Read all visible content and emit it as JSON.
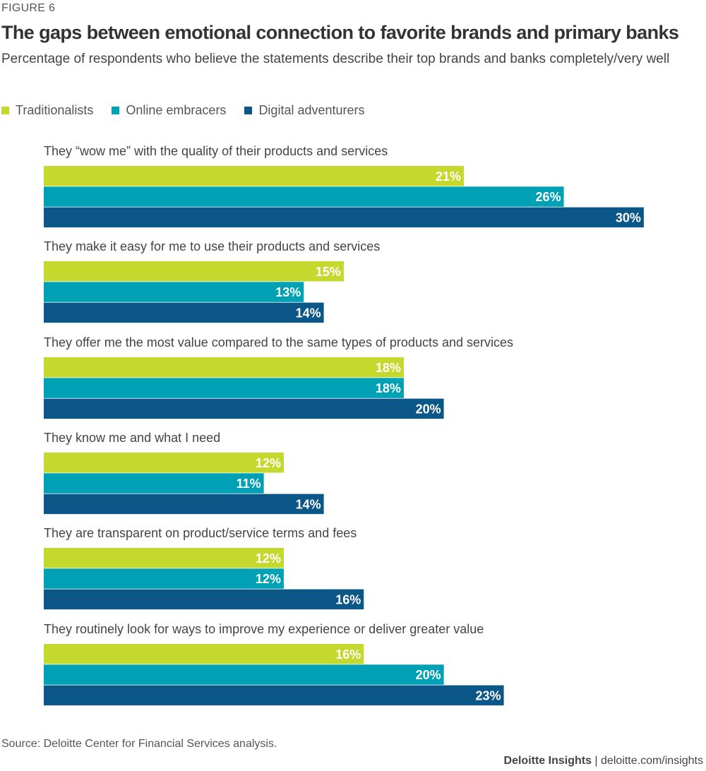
{
  "figure_label": "FIGURE 6",
  "footer": {
    "brand": "Deloitte Insights",
    "separator": "|",
    "site": "deloitte.com/insights"
  },
  "source": "Source: Deloitte Center for Financial Services analysis.",
  "chart_data": {
    "type": "bar",
    "orientation": "horizontal",
    "title": "The gaps between emotional connection to favorite brands and primary banks",
    "subtitle": "Percentage of respondents who believe the statements describe their top brands and banks completely/very well",
    "xlabel": "",
    "ylabel": "",
    "xlim": [
      0,
      30
    ],
    "grid": false,
    "legend_position": "top-left",
    "value_suffix": "%",
    "categories": [
      "They “wow me” with the quality of their products and services",
      "They make it easy for me to use their products and services",
      "They offer me the most value compared to the same types of products and services",
      "They know me and what I need",
      "They are transparent on product/service terms and fees",
      "They routinely look for ways to improve my experience or deliver greater value"
    ],
    "series": [
      {
        "name": "Traditionalists",
        "color": "#c4d82e",
        "values": [
          21,
          15,
          18,
          12,
          12,
          16
        ]
      },
      {
        "name": "Online embracers",
        "color": "#00a1b4",
        "values": [
          26,
          13,
          18,
          11,
          12,
          20
        ]
      },
      {
        "name": "Digital adventurers",
        "color": "#0b5788",
        "values": [
          30,
          14,
          20,
          14,
          16,
          23
        ]
      }
    ]
  }
}
